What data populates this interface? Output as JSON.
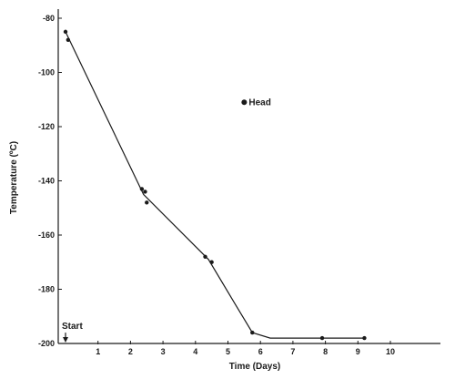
{
  "chart_data": {
    "type": "line",
    "title": "",
    "xlabel": "Time (Days)",
    "ylabel": "Temperature (ºC)",
    "xlim": [
      -0.1,
      11
    ],
    "ylim": [
      -200,
      -77
    ],
    "x_ticks": [
      1,
      2,
      3,
      4,
      5,
      6,
      7,
      8,
      9,
      10
    ],
    "y_ticks": [
      -80,
      -100,
      -120,
      -140,
      -160,
      -180,
      -200
    ],
    "series": [
      {
        "name": "Head",
        "points": [
          [
            0.0,
            -85
          ],
          [
            0.08,
            -88
          ],
          [
            2.35,
            -143
          ],
          [
            2.45,
            -144
          ],
          [
            2.5,
            -148
          ],
          [
            4.3,
            -168
          ],
          [
            4.5,
            -170
          ],
          [
            5.75,
            -196
          ],
          [
            7.9,
            -198
          ],
          [
            9.2,
            -198
          ]
        ],
        "line": [
          [
            0.0,
            -85
          ],
          [
            2.4,
            -145
          ],
          [
            4.4,
            -169
          ],
          [
            5.2,
            -185
          ],
          [
            5.75,
            -196
          ],
          [
            6.3,
            -198
          ],
          [
            9.2,
            -198
          ]
        ]
      }
    ],
    "legend": {
      "label": "Head",
      "placement": "top-right",
      "x": 5.5,
      "y": -111
    },
    "annotation": {
      "label": "Start",
      "x": 0.0,
      "y": -195
    }
  }
}
